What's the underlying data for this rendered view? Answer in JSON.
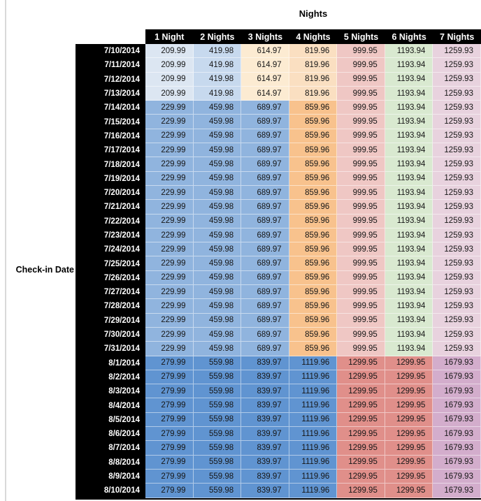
{
  "colors": {
    "header_bg": "#000000",
    "header_text": "#ffffff",
    "value_text": "#161616",
    "left_rule": "#d9d9d9",
    "gridline": "rgba(255,255,255,0.5)"
  },
  "chart_data": {
    "type": "heatmap",
    "title": "Nights",
    "row_label": "Check-in Date",
    "columns": [
      "1 Night",
      "2 Nights",
      "3 Nights",
      "4 Nights",
      "5 Nights",
      "6 Nights",
      "7 Nights"
    ],
    "palettes": {
      "A": [
        "#dce6f2",
        "#c7d9ee",
        "#fcebd2",
        "#fadfc1",
        "#efc7c4",
        "#d9e9d0",
        "#e8d2de"
      ],
      "B": [
        "#90b4de",
        "#90b4de",
        "#90b4de",
        "#f8c28d",
        "#efc7c4",
        "#d9e9d0",
        "#e8d2de"
      ],
      "C": [
        "#6094d1",
        "#6094d1",
        "#6094d1",
        "#6094d1",
        "#e08f8a",
        "#e08f8a",
        "#d3adcc"
      ]
    },
    "rows": [
      {
        "date": "7/10/2014",
        "palette": "A",
        "values": [
          "209.99",
          "419.98",
          "614.97",
          "819.96",
          "999.95",
          "1193.94",
          "1259.93"
        ]
      },
      {
        "date": "7/11/2014",
        "palette": "A",
        "values": [
          "209.99",
          "419.98",
          "614.97",
          "819.96",
          "999.95",
          "1193.94",
          "1259.93"
        ]
      },
      {
        "date": "7/12/2014",
        "palette": "A",
        "values": [
          "209.99",
          "419.98",
          "614.97",
          "819.96",
          "999.95",
          "1193.94",
          "1259.93"
        ]
      },
      {
        "date": "7/13/2014",
        "palette": "A",
        "values": [
          "209.99",
          "419.98",
          "614.97",
          "819.96",
          "999.95",
          "1193.94",
          "1259.93"
        ]
      },
      {
        "date": "7/14/2014",
        "palette": "B",
        "values": [
          "229.99",
          "459.98",
          "689.97",
          "859.96",
          "999.95",
          "1193.94",
          "1259.93"
        ]
      },
      {
        "date": "7/15/2014",
        "palette": "B",
        "values": [
          "229.99",
          "459.98",
          "689.97",
          "859.96",
          "999.95",
          "1193.94",
          "1259.93"
        ]
      },
      {
        "date": "7/16/2014",
        "palette": "B",
        "values": [
          "229.99",
          "459.98",
          "689.97",
          "859.96",
          "999.95",
          "1193.94",
          "1259.93"
        ]
      },
      {
        "date": "7/17/2014",
        "palette": "B",
        "values": [
          "229.99",
          "459.98",
          "689.97",
          "859.96",
          "999.95",
          "1193.94",
          "1259.93"
        ]
      },
      {
        "date": "7/18/2014",
        "palette": "B",
        "values": [
          "229.99",
          "459.98",
          "689.97",
          "859.96",
          "999.95",
          "1193.94",
          "1259.93"
        ]
      },
      {
        "date": "7/19/2014",
        "palette": "B",
        "values": [
          "229.99",
          "459.98",
          "689.97",
          "859.96",
          "999.95",
          "1193.94",
          "1259.93"
        ]
      },
      {
        "date": "7/20/2014",
        "palette": "B",
        "values": [
          "229.99",
          "459.98",
          "689.97",
          "859.96",
          "999.95",
          "1193.94",
          "1259.93"
        ]
      },
      {
        "date": "7/21/2014",
        "palette": "B",
        "values": [
          "229.99",
          "459.98",
          "689.97",
          "859.96",
          "999.95",
          "1193.94",
          "1259.93"
        ]
      },
      {
        "date": "7/22/2014",
        "palette": "B",
        "values": [
          "229.99",
          "459.98",
          "689.97",
          "859.96",
          "999.95",
          "1193.94",
          "1259.93"
        ]
      },
      {
        "date": "7/23/2014",
        "palette": "B",
        "values": [
          "229.99",
          "459.98",
          "689.97",
          "859.96",
          "999.95",
          "1193.94",
          "1259.93"
        ]
      },
      {
        "date": "7/24/2014",
        "palette": "B",
        "values": [
          "229.99",
          "459.98",
          "689.97",
          "859.96",
          "999.95",
          "1193.94",
          "1259.93"
        ]
      },
      {
        "date": "7/25/2014",
        "palette": "B",
        "values": [
          "229.99",
          "459.98",
          "689.97",
          "859.96",
          "999.95",
          "1193.94",
          "1259.93"
        ]
      },
      {
        "date": "7/26/2014",
        "palette": "B",
        "values": [
          "229.99",
          "459.98",
          "689.97",
          "859.96",
          "999.95",
          "1193.94",
          "1259.93"
        ]
      },
      {
        "date": "7/27/2014",
        "palette": "B",
        "values": [
          "229.99",
          "459.98",
          "689.97",
          "859.96",
          "999.95",
          "1193.94",
          "1259.93"
        ]
      },
      {
        "date": "7/28/2014",
        "palette": "B",
        "values": [
          "229.99",
          "459.98",
          "689.97",
          "859.96",
          "999.95",
          "1193.94",
          "1259.93"
        ]
      },
      {
        "date": "7/29/2014",
        "palette": "B",
        "values": [
          "229.99",
          "459.98",
          "689.97",
          "859.96",
          "999.95",
          "1193.94",
          "1259.93"
        ]
      },
      {
        "date": "7/30/2014",
        "palette": "B",
        "values": [
          "229.99",
          "459.98",
          "689.97",
          "859.96",
          "999.95",
          "1193.94",
          "1259.93"
        ]
      },
      {
        "date": "7/31/2014",
        "palette": "B",
        "values": [
          "229.99",
          "459.98",
          "689.97",
          "859.96",
          "999.95",
          "1193.94",
          "1259.93"
        ]
      },
      {
        "date": "8/1/2014",
        "palette": "C",
        "values": [
          "279.99",
          "559.98",
          "839.97",
          "1119.96",
          "1299.95",
          "1299.95",
          "1679.93"
        ]
      },
      {
        "date": "8/2/2014",
        "palette": "C",
        "values": [
          "279.99",
          "559.98",
          "839.97",
          "1119.96",
          "1299.95",
          "1299.95",
          "1679.93"
        ]
      },
      {
        "date": "8/3/2014",
        "palette": "C",
        "values": [
          "279.99",
          "559.98",
          "839.97",
          "1119.96",
          "1299.95",
          "1299.95",
          "1679.93"
        ]
      },
      {
        "date": "8/4/2014",
        "palette": "C",
        "values": [
          "279.99",
          "559.98",
          "839.97",
          "1119.96",
          "1299.95",
          "1299.95",
          "1679.93"
        ]
      },
      {
        "date": "8/5/2014",
        "palette": "C",
        "values": [
          "279.99",
          "559.98",
          "839.97",
          "1119.96",
          "1299.95",
          "1299.95",
          "1679.93"
        ]
      },
      {
        "date": "8/6/2014",
        "palette": "C",
        "values": [
          "279.99",
          "559.98",
          "839.97",
          "1119.96",
          "1299.95",
          "1299.95",
          "1679.93"
        ]
      },
      {
        "date": "8/7/2014",
        "palette": "C",
        "values": [
          "279.99",
          "559.98",
          "839.97",
          "1119.96",
          "1299.95",
          "1299.95",
          "1679.93"
        ]
      },
      {
        "date": "8/8/2014",
        "palette": "C",
        "values": [
          "279.99",
          "559.98",
          "839.97",
          "1119.96",
          "1299.95",
          "1299.95",
          "1679.93"
        ]
      },
      {
        "date": "8/9/2014",
        "palette": "C",
        "values": [
          "279.99",
          "559.98",
          "839.97",
          "1119.96",
          "1299.95",
          "1299.95",
          "1679.93"
        ]
      },
      {
        "date": "8/10/2014",
        "palette": "C",
        "values": [
          "279.99",
          "559.98",
          "839.97",
          "1119.96",
          "1299.95",
          "1299.95",
          "1679.93"
        ]
      }
    ]
  }
}
